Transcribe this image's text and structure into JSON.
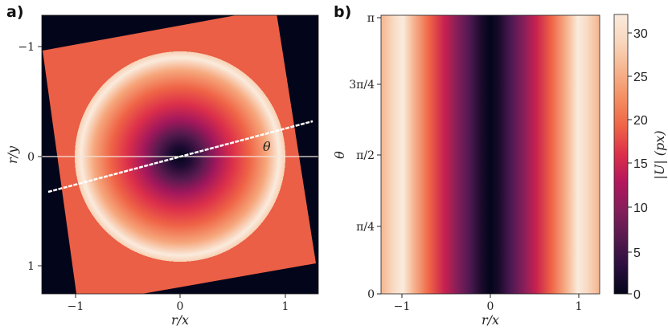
{
  "panels": {
    "a": {
      "label": "a)",
      "xlabel": "r/x",
      "ylabel": "r/y",
      "xticks": [
        "−1",
        "0",
        "1"
      ],
      "yticks": [
        "−1",
        "0",
        "1"
      ],
      "angle_label": "θ"
    },
    "b": {
      "label": "b)",
      "xlabel": "r/x",
      "ylabel": "θ",
      "xticks": [
        "−1",
        "0",
        "1"
      ],
      "yticks": [
        "0",
        "π/4",
        "π/2",
        "3π/4",
        "π"
      ]
    },
    "colorbar": {
      "label": "|U| (px)",
      "ticks": [
        "0",
        "5",
        "10",
        "15",
        "20",
        "25",
        "30"
      ]
    }
  },
  "chart_data": [
    {
      "type": "heatmap",
      "title": "",
      "xlabel": "r/x",
      "ylabel": "r/y",
      "xlim": [
        -1.25,
        1.25
      ],
      "ylim": [
        1.25,
        -1.25
      ],
      "description_of_field": "radial |U| field: 0 at center, peaks ~32 at r≈0.95, rotated square support; line at θ from center",
      "ring_peak_radius": 0.95,
      "value_range": [
        0,
        32
      ],
      "rotation_deg": 15
    },
    {
      "type": "heatmap",
      "title": "",
      "xlabel": "r/x",
      "ylabel": "θ",
      "xlim": [
        -1.25,
        1.25
      ],
      "ylim": [
        0,
        3.1416
      ],
      "profile_x": [
        -1.25,
        -1.0,
        -0.75,
        -0.5,
        -0.25,
        0,
        0.25,
        0.5,
        0.75,
        1.0,
        1.25
      ],
      "profile_U": [
        26,
        32,
        25,
        16,
        8,
        0,
        8,
        16,
        25,
        32,
        26
      ],
      "value_range": [
        0,
        32
      ]
    }
  ],
  "colors": {
    "cmap": [
      "#03051a",
      "#2b0f3f",
      "#561a4e",
      "#841e5a",
      "#b3175d",
      "#dc2f4a",
      "#ef6446",
      "#f48e62",
      "#f6b48e",
      "#f8d6bc",
      "#faebdd"
    ]
  }
}
